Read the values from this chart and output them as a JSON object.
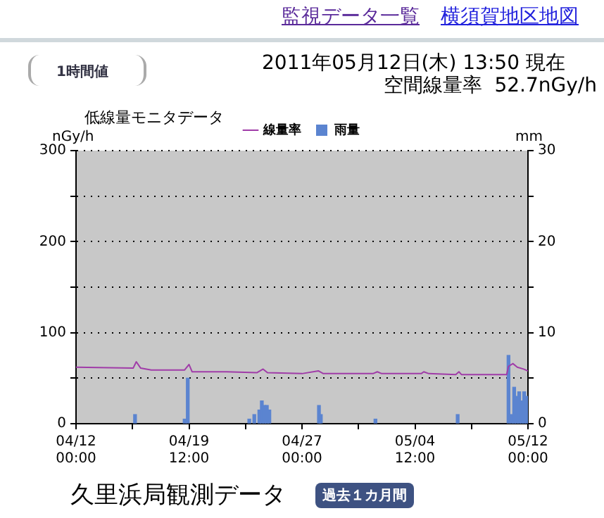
{
  "chart_data": {
    "type": "line",
    "title": "低線量モニタデータ",
    "ylabel": "nGy/h",
    "y2label": "mm",
    "annotations": [
      "監視データ一覧",
      "横須賀地区地図",
      "1時間値",
      "2011年05月12日(木) 13:50 現在",
      "空間線量率  52.7nGy/h",
      "久里浜局観測データ",
      "過去１カ月間"
    ],
    "xlim": [
      "2011-04-12T00:00",
      "2011-05-12T00:00"
    ],
    "xticks": [
      {
        "value": "2011-04-12T00:00",
        "label": "04/12 00:00"
      },
      {
        "value": "2011-04-15T18:00",
        "label": null
      },
      {
        "value": "2011-04-19T12:00",
        "label": "04/19 12:00"
      },
      {
        "value": "2011-04-23T06:00",
        "label": null
      },
      {
        "value": "2011-04-27T00:00",
        "label": "04/27 00:00"
      },
      {
        "value": "2011-04-30T18:00",
        "label": null
      },
      {
        "value": "2011-05-04T12:00",
        "label": "05/04 12:00"
      },
      {
        "value": "2011-05-08T06:00",
        "label": null
      },
      {
        "value": "2011-05-12T00:00",
        "label": "05/12 00:00"
      }
    ],
    "ylim": [
      0,
      300
    ],
    "yticks": [
      0,
      {
        "value": 50,
        "label": null
      },
      100,
      {
        "value": 150,
        "label": null
      },
      200,
      {
        "value": 250,
        "label": null
      },
      300
    ],
    "y2lim": [
      0,
      30
    ],
    "y2ticks": [
      0,
      {
        "value": 5,
        "label": null
      },
      10,
      {
        "value": 15,
        "label": null
      },
      20,
      {
        "value": 25,
        "label": null
      },
      30
    ],
    "grid": "y",
    "legend": "top",
    "series": [
      {
        "name": "線量率",
        "color": "#a03ca8",
        "x": [
          "2011-04-12T00:00",
          "2011-04-15T19:00",
          "2011-04-16T00:00",
          "2011-04-16T07:00",
          "2011-04-17T00:00",
          "2011-04-19T05:00",
          "2011-04-19T12:00",
          "2011-04-19T17:00",
          "2011-04-22T00:00",
          "2011-04-24T00:00",
          "2011-04-24T10:00",
          "2011-04-24T17:00",
          "2011-04-27T00:00",
          "2011-04-28T02:00",
          "2011-04-28T10:00",
          "2011-05-01T17:00",
          "2011-05-02T00:00",
          "2011-05-02T07:00",
          "2011-05-04T22:00",
          "2011-05-05T02:00",
          "2011-05-05T10:00",
          "2011-05-07T05:00",
          "2011-05-07T10:00",
          "2011-05-07T14:00",
          "2011-05-10T14:00",
          "2011-05-10T17:00",
          "2011-05-11T00:00",
          "2011-05-11T07:00",
          "2011-05-11T17:00",
          "2011-05-12T00:00"
        ],
        "values": [
          62,
          61,
          68,
          61,
          59,
          59,
          65,
          57,
          57,
          56,
          60,
          56,
          55,
          58,
          55,
          55,
          57,
          55,
          55,
          57,
          55,
          54,
          57,
          54,
          54,
          63,
          66,
          62,
          60,
          58
        ]
      },
      {
        "name": "雨量",
        "type": "bar",
        "axis": "y2",
        "color": "#5b84d0",
        "x": [
          "2011-04-15T22:00",
          "2011-04-19T05:00",
          "2011-04-19T10:00",
          "2011-04-23T12:00",
          "2011-04-23T20:00",
          "2011-04-24T04:00",
          "2011-04-24T08:00",
          "2011-04-24T12:00",
          "2011-04-24T16:00",
          "2011-04-24T20:00",
          "2011-04-28T03:00",
          "2011-04-28T06:00",
          "2011-05-01T21:00",
          "2011-05-07T08:00",
          "2011-05-10T17:00",
          "2011-05-10T22:00",
          "2011-05-11T02:00",
          "2011-05-11T06:00",
          "2011-05-11T10:00",
          "2011-05-11T14:00",
          "2011-05-11T18:00",
          "2011-05-11T22:00"
        ],
        "values": [
          1,
          0.5,
          5,
          0.5,
          1,
          1.5,
          2.5,
          2,
          2,
          1.5,
          2,
          1,
          0.5,
          1,
          7.5,
          1,
          4,
          3,
          3.5,
          2.5,
          3.5,
          3
        ]
      }
    ]
  }
}
